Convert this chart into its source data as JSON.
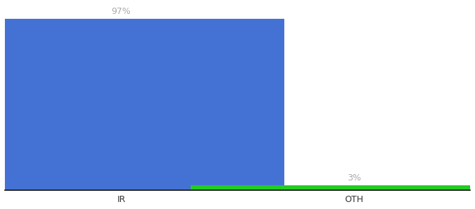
{
  "categories": [
    "IR",
    "OTH"
  ],
  "values": [
    97,
    3
  ],
  "bar_colors": [
    "#4472d4",
    "#22cc22"
  ],
  "value_labels": [
    "97%",
    "3%"
  ],
  "label_color": "#aaaaaa",
  "xlabel": "",
  "ylabel": "",
  "ylim": [
    0,
    105
  ],
  "background_color": "#ffffff",
  "bar_width": 0.7,
  "label_fontsize": 9,
  "tick_fontsize": 9,
  "axis_line_color": "#111111",
  "x_positions": [
    0.25,
    0.75
  ],
  "xlim": [
    0.0,
    1.0
  ]
}
